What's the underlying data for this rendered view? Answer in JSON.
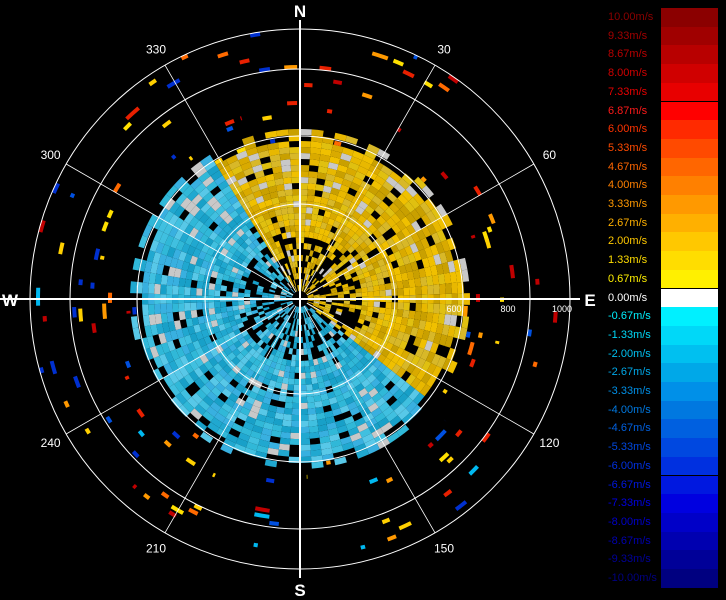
{
  "plot": {
    "cardinals": {
      "n": "N",
      "e": "E",
      "s": "S",
      "w": "W"
    },
    "azimuth_labels": [
      {
        "angle": 30,
        "label": "30"
      },
      {
        "angle": 60,
        "label": "60"
      },
      {
        "angle": 120,
        "label": "120"
      },
      {
        "angle": 150,
        "label": "150"
      },
      {
        "angle": 210,
        "label": "210"
      },
      {
        "angle": 240,
        "label": "240"
      },
      {
        "angle": 300,
        "label": "300"
      },
      {
        "angle": 330,
        "label": "330"
      }
    ],
    "range_labels": [
      {
        "range": 600,
        "label": "600"
      },
      {
        "range": 800,
        "label": "800"
      },
      {
        "range": 1000,
        "label": "1000"
      }
    ],
    "max_range": 1000,
    "colors": {
      "background": "#000000",
      "rings": "#ffffff",
      "axes": "#ffffff"
    }
  },
  "legend": {
    "entries": [
      {
        "label": "10.00m/s",
        "color": "#8b0000",
        "text_color": "#8b0000"
      },
      {
        "label": "9.33m/s",
        "color": "#a00000",
        "text_color": "#a00000"
      },
      {
        "label": "8.67m/s",
        "color": "#b80000",
        "text_color": "#b80000"
      },
      {
        "label": "8.00m/s",
        "color": "#d00000",
        "text_color": "#d00000"
      },
      {
        "label": "7.33m/s",
        "color": "#e80000",
        "text_color": "#e80000"
      },
      {
        "label": "6.87m/s",
        "color": "#ff0000",
        "text_color": "#ff1a1a"
      },
      {
        "label": "6.00m/s",
        "color": "#ff2a00",
        "text_color": "#ff3300"
      },
      {
        "label": "5.33m/s",
        "color": "#ff4a00",
        "text_color": "#ff4a00"
      },
      {
        "label": "4.67m/s",
        "color": "#ff6600",
        "text_color": "#ff6600"
      },
      {
        "label": "4.00m/s",
        "color": "#ff8000",
        "text_color": "#ff8000"
      },
      {
        "label": "3.33m/s",
        "color": "#ff9900",
        "text_color": "#ff9900"
      },
      {
        "label": "2.67m/s",
        "color": "#ffb000",
        "text_color": "#ffb000"
      },
      {
        "label": "2.00m/s",
        "color": "#ffc800",
        "text_color": "#ffc800"
      },
      {
        "label": "1.33m/s",
        "color": "#ffdd00",
        "text_color": "#ffdd00"
      },
      {
        "label": "0.67m/s",
        "color": "#fff000",
        "text_color": "#fff000"
      },
      {
        "label": "0.00m/s",
        "color": "#ffffff",
        "text_color": "#ffffff"
      },
      {
        "label": "-0.67m/s",
        "color": "#00f0ff",
        "text_color": "#00f0ff"
      },
      {
        "label": "-1.33m/s",
        "color": "#00d8f8",
        "text_color": "#00d8f8"
      },
      {
        "label": "-2.00m/s",
        "color": "#00c0f0",
        "text_color": "#00c0f0"
      },
      {
        "label": "-2.67m/s",
        "color": "#00a8e8",
        "text_color": "#00a8e8"
      },
      {
        "label": "-3.33m/s",
        "color": "#0090e8",
        "text_color": "#0090e8"
      },
      {
        "label": "-4.00m/s",
        "color": "#0078e0",
        "text_color": "#0078e0"
      },
      {
        "label": "-4.67m/s",
        "color": "#0060e0",
        "text_color": "#0060e0"
      },
      {
        "label": "-5.33m/s",
        "color": "#0048e0",
        "text_color": "#0048e0"
      },
      {
        "label": "-6.00m/s",
        "color": "#0030e0",
        "text_color": "#0030e0"
      },
      {
        "label": "-6.67m/s",
        "color": "#0018e0",
        "text_color": "#0018e0"
      },
      {
        "label": "-7.33m/s",
        "color": "#0000e0",
        "text_color": "#0000e0"
      },
      {
        "label": "-8.00m/s",
        "color": "#0000c8",
        "text_color": "#0000c8"
      },
      {
        "label": "-8.67m/s",
        "color": "#0000b0",
        "text_color": "#0000b0"
      },
      {
        "label": "-9.33m/s",
        "color": "#000098",
        "text_color": "#000098"
      },
      {
        "label": "-10.00m/s",
        "color": "#000080",
        "text_color": "#000080"
      }
    ]
  }
}
